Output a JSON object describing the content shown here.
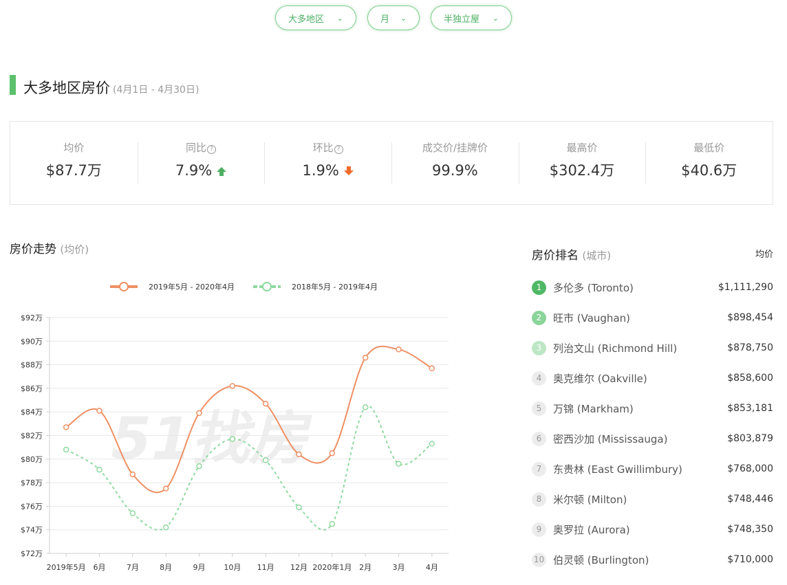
{
  "filters": [
    {
      "label": "大多地区",
      "icon": "chevron-down-icon"
    },
    {
      "label": "月",
      "icon": "chevron-down-icon"
    },
    {
      "label": "半独立屋",
      "icon": "chevron-down-icon"
    }
  ],
  "title": {
    "main": "大多地区房价",
    "range": "(4月1日 - 4月30日)"
  },
  "stats": [
    {
      "label": "均价",
      "value": "$87.7万"
    },
    {
      "label": "同比",
      "help": "?",
      "value": "7.9%",
      "trend": "up"
    },
    {
      "label": "环比",
      "help": "?",
      "value": "1.9%",
      "trend": "down"
    },
    {
      "label": "成交价/挂牌价",
      "value": "99.9%"
    },
    {
      "label": "最高价",
      "value": "$302.4万"
    },
    {
      "label": "最低价",
      "value": "$40.6万"
    }
  ],
  "chart_section": {
    "title": "房价走势",
    "sub": "(均价)"
  },
  "colors": {
    "accent": "#5cc06c",
    "series1": "#ef8f63",
    "series2": "#8fd9a0",
    "up": "#4caf63",
    "down": "#f06b2a"
  },
  "chart_data": {
    "type": "line",
    "categories": [
      "2019年5月",
      "6月",
      "7月",
      "8月",
      "9月",
      "10月",
      "11月",
      "12月",
      "2020年1月",
      "2月",
      "3月",
      "4月"
    ],
    "series": [
      {
        "name": "2019年5月 - 2020年4月",
        "style": "solid",
        "values": [
          82.7,
          84.1,
          78.7,
          77.5,
          83.9,
          86.2,
          84.7,
          80.4,
          80.5,
          88.6,
          89.3,
          87.7
        ]
      },
      {
        "name": "2018年5月 - 2019年4月",
        "style": "dashed",
        "values": [
          80.8,
          79.1,
          75.4,
          74.2,
          79.4,
          81.7,
          79.9,
          75.9,
          74.5,
          84.4,
          79.6,
          81.3
        ]
      }
    ],
    "ylim": [
      72,
      92
    ],
    "yticks": [
      "$72万",
      "$74万",
      "$76万",
      "$78万",
      "$80万",
      "$82万",
      "$84万",
      "$86万",
      "$88万",
      "$90万",
      "$92万"
    ],
    "grid": true,
    "legend": "top"
  },
  "ranking": {
    "title": "房价排名",
    "sub": "(城市)",
    "head": "均价",
    "rows": [
      {
        "rank": "1",
        "name": "多伦多 (Toronto)",
        "price": "$1,111,290"
      },
      {
        "rank": "2",
        "name": "旺市 (Vaughan)",
        "price": "$898,454"
      },
      {
        "rank": "3",
        "name": "列治文山 (Richmond Hill)",
        "price": "$878,750"
      },
      {
        "rank": "4",
        "name": "奥克维尔 (Oakville)",
        "price": "$858,600"
      },
      {
        "rank": "5",
        "name": "万锦 (Markham)",
        "price": "$853,181"
      },
      {
        "rank": "6",
        "name": "密西沙加 (Mississauga)",
        "price": "$803,879"
      },
      {
        "rank": "7",
        "name": "东贵林 (East Gwillimbury)",
        "price": "$768,000"
      },
      {
        "rank": "8",
        "name": "米尔顿 (Milton)",
        "price": "$748,446"
      },
      {
        "rank": "9",
        "name": "奥罗拉 (Aurora)",
        "price": "$748,350"
      },
      {
        "rank": "10",
        "name": "伯灵顿 (Burlington)",
        "price": "$710,000"
      }
    ]
  }
}
